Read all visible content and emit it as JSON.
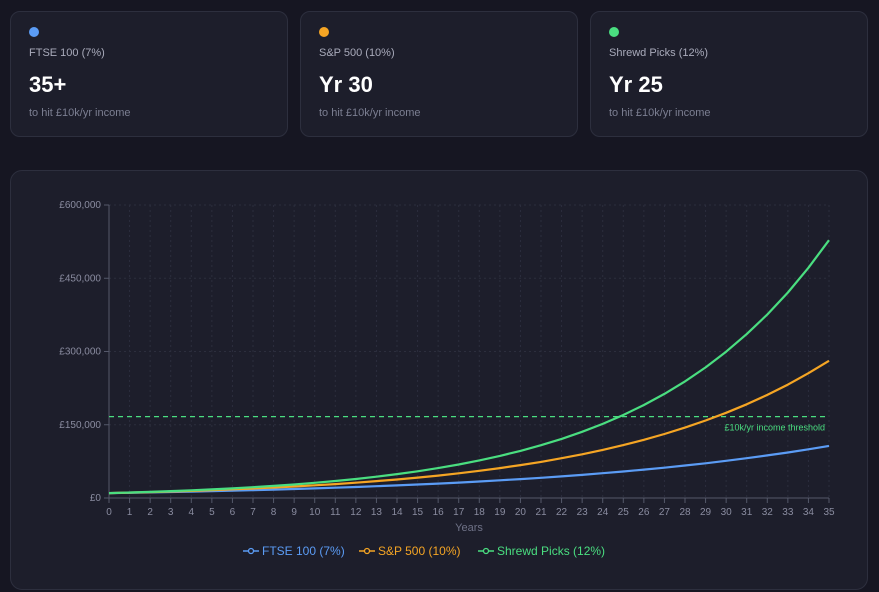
{
  "cards": [
    {
      "label": "FTSE 100 (7%)",
      "value": "35+",
      "sub": "to hit £10k/yr income",
      "color": "#5b9cf5"
    },
    {
      "label": "S&P 500 (10%)",
      "value": "Yr 30",
      "sub": "to hit £10k/yr income",
      "color": "#f5a524"
    },
    {
      "label": "Shrewd Picks (12%)",
      "value": "Yr 25",
      "sub": "to hit £10k/yr income",
      "color": "#4ade80"
    }
  ],
  "chart_data": {
    "type": "line",
    "xlabel": "Years",
    "ylabel": "",
    "x": [
      0,
      1,
      2,
      3,
      4,
      5,
      6,
      7,
      8,
      9,
      10,
      11,
      12,
      13,
      14,
      15,
      16,
      17,
      18,
      19,
      20,
      21,
      22,
      23,
      24,
      25,
      26,
      27,
      28,
      29,
      30,
      31,
      32,
      33,
      34,
      35
    ],
    "xlim": [
      0,
      35
    ],
    "ylim": [
      0,
      600000
    ],
    "yticks": [
      0,
      150000,
      300000,
      450000,
      600000
    ],
    "ytick_labels": [
      "£0",
      "£150,000",
      "£300,000",
      "£450,000",
      "£600,000"
    ],
    "grid": true,
    "threshold": {
      "value": 166667,
      "label": "£10k/yr income threshold",
      "color": "#4ade80"
    },
    "legend_position": "bottom",
    "series": [
      {
        "name": "FTSE 100 (7%)",
        "color": "#5b9cf5",
        "values": [
          10000,
          10700,
          11449,
          12250,
          13108,
          14026,
          15007,
          16058,
          17182,
          18385,
          19672,
          21049,
          22522,
          24098,
          25785,
          27590,
          29522,
          31588,
          33799,
          36165,
          38697,
          41406,
          44304,
          47405,
          50724,
          54274,
          58074,
          62139,
          66488,
          71143,
          76123,
          81451,
          87153,
          93253,
          99781,
          106766
        ]
      },
      {
        "name": "S&P 500 (10%)",
        "color": "#f5a524",
        "values": [
          10000,
          11000,
          12100,
          13310,
          14641,
          16105,
          17716,
          19487,
          21436,
          23579,
          25937,
          28531,
          31384,
          34523,
          37975,
          41772,
          45950,
          50545,
          55599,
          61159,
          67275,
          74002,
          81403,
          89543,
          98497,
          108347,
          119182,
          131100,
          144210,
          158631,
          174494,
          191943,
          211138,
          232252,
          255477,
          281024
        ]
      },
      {
        "name": "Shrewd Picks (12%)",
        "color": "#4ade80",
        "values": [
          10000,
          11200,
          12544,
          14049,
          15735,
          17623,
          19738,
          22107,
          24760,
          27731,
          31058,
          34785,
          38960,
          43635,
          48871,
          54736,
          61304,
          68660,
          76900,
          86128,
          96463,
          108038,
          121003,
          135523,
          151786,
          170001,
          190401,
          213249,
          238839,
          267499,
          299599,
          335551,
          375817,
          420915,
          471425,
          527996
        ]
      }
    ]
  }
}
